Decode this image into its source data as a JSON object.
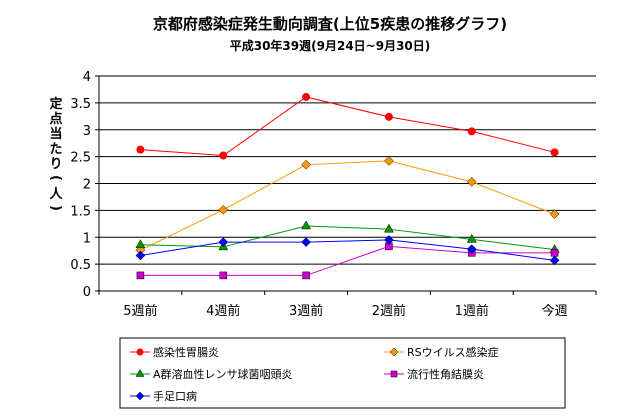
{
  "chart_data": {
    "type": "line",
    "title": "京都府感染症発生動向調査(上位5疾患の推移グラフ)",
    "subtitle": "平成30年39週(9月24日~9月30日)",
    "ylabel": "定点当たり(人)",
    "xlabel": "",
    "categories": [
      "5週前",
      "4週前",
      "3週前",
      "2週前",
      "1週前",
      "今週"
    ],
    "y_ticks": [
      "0",
      "0.5",
      "1",
      "1.5",
      "2",
      "2.5",
      "3",
      "3.5",
      "4"
    ],
    "ylim": [
      0,
      4
    ],
    "grid": true,
    "legend_position": "bottom",
    "series": [
      {
        "name": "感染性胃腸炎",
        "color": "#ff0000",
        "marker": "circle",
        "values": [
          2.63,
          2.52,
          3.61,
          3.24,
          2.97,
          2.58
        ]
      },
      {
        "name": "RSウイルス感染症",
        "color": "#ff9900",
        "marker": "diamond",
        "values": [
          0.76,
          1.51,
          2.35,
          2.42,
          2.03,
          1.43
        ]
      },
      {
        "name": "A群溶血性レンサ球菌咽頭炎",
        "color": "#009900",
        "marker": "triangle",
        "values": [
          0.86,
          0.82,
          1.21,
          1.15,
          0.96,
          0.77
        ]
      },
      {
        "name": "流行性角結膜炎",
        "color": "#cc00cc",
        "marker": "square",
        "values": [
          0.29,
          0.29,
          0.29,
          0.83,
          0.71,
          0.71
        ]
      },
      {
        "name": "手足口病",
        "color": "#0000ff",
        "marker": "diamond",
        "values": [
          0.66,
          0.91,
          0.91,
          0.95,
          0.78,
          0.57
        ]
      }
    ]
  }
}
